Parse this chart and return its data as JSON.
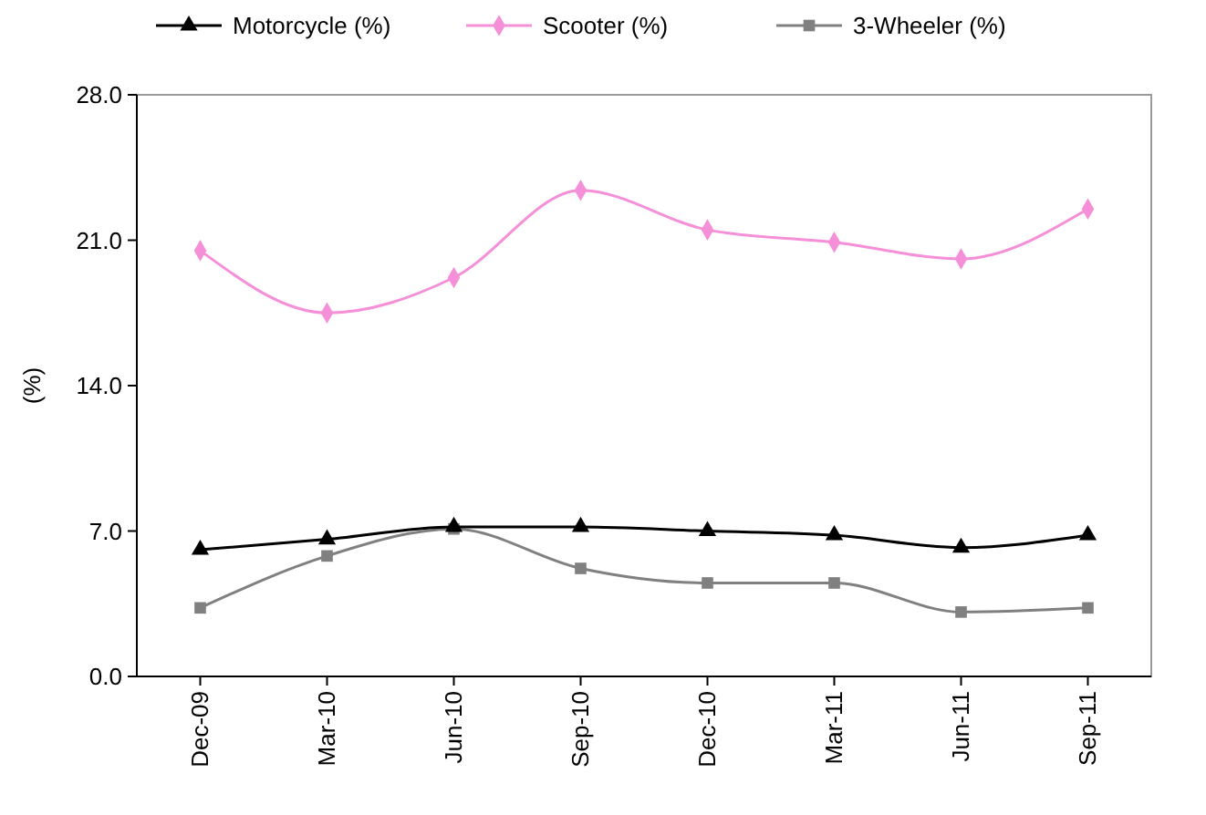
{
  "chart_data": {
    "type": "line",
    "ylabel": "(%)",
    "legend": "top",
    "line_style": "solid",
    "categories": [
      "Dec-09",
      "Mar-10",
      "Jun-10",
      "Sep-10",
      "Dec-10",
      "Mar-11",
      "Jun-11",
      "Sep-11"
    ],
    "ylim": [
      0,
      28
    ],
    "yticks": [
      {
        "value": 0,
        "label": "0.0"
      },
      {
        "value": 7,
        "label": "7.0"
      },
      {
        "value": 14,
        "label": "14.0"
      },
      {
        "value": 21,
        "label": "21.0"
      },
      {
        "value": 28,
        "label": "28.0"
      }
    ],
    "series": [
      {
        "name": "Motorcycle (%)",
        "color": "#000000",
        "marker": "triangle",
        "values": [
          6.1,
          6.6,
          7.2,
          7.2,
          7.0,
          6.8,
          6.2,
          6.8
        ]
      },
      {
        "name": "Scooter (%)",
        "color": "#f58fd8",
        "marker": "diamond",
        "values": [
          20.5,
          17.5,
          19.2,
          23.4,
          21.5,
          20.9,
          20.1,
          22.5
        ]
      },
      {
        "name": "3-Wheeler (%)",
        "color": "#808080",
        "marker": "square",
        "values": [
          3.3,
          5.8,
          7.1,
          5.2,
          4.5,
          4.5,
          3.1,
          3.3
        ]
      }
    ]
  }
}
